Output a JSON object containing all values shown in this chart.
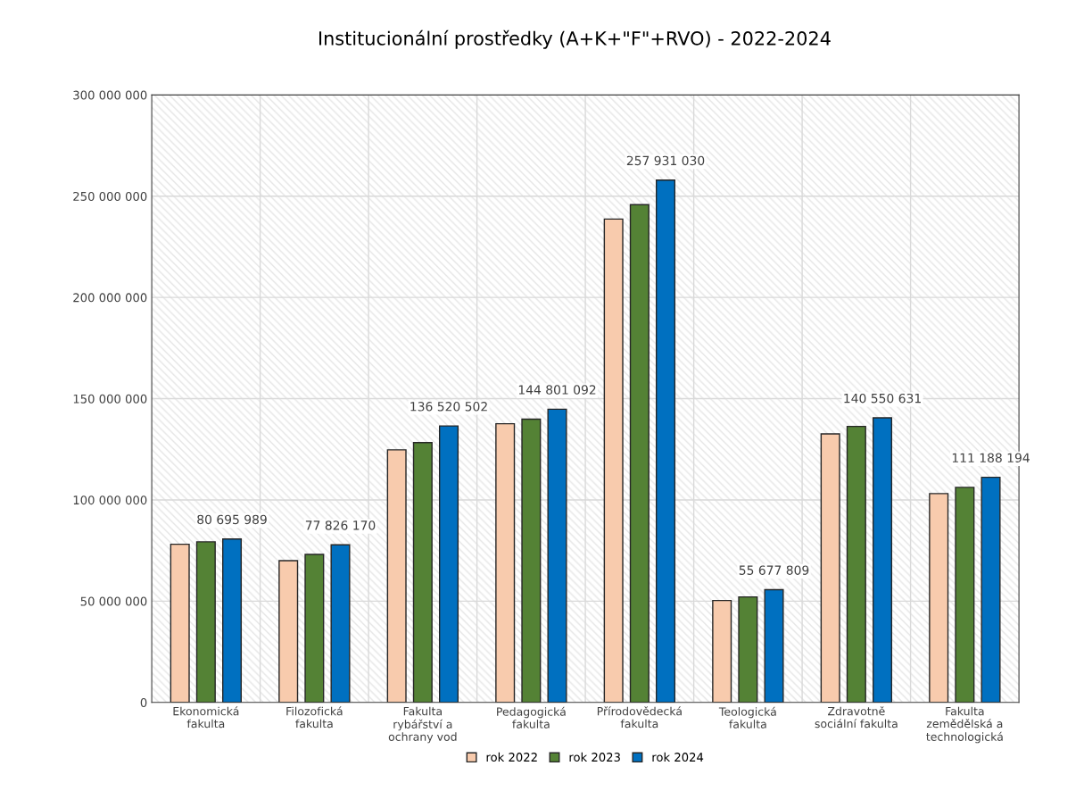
{
  "chart_data": {
    "type": "bar",
    "title": "Institucionální prostředky (A+K+\"F\"+RVO) - 2022-2024",
    "categories": [
      "Ekonomická fakulta",
      "Filozofická fakulta",
      "Fakulta rybářství a ochrany vod",
      "Pedagogická fakulta",
      "Přírodovědecká fakulta",
      "Teologická fakulta",
      "Zdravotně sociální fakulta",
      "Fakulta zemědělská a technologická"
    ],
    "series": [
      {
        "name": "rok 2022",
        "color": "#f8cbad",
        "values": [
          78100000,
          70000000,
          124700000,
          137600000,
          238700000,
          50300000,
          132600000,
          103100000
        ]
      },
      {
        "name": "rok 2023",
        "color": "#548235",
        "values": [
          79300000,
          73100000,
          128300000,
          139900000,
          245800000,
          52100000,
          136300000,
          106200000
        ]
      },
      {
        "name": "rok 2024",
        "color": "#0070c0",
        "values": [
          80695989,
          77826170,
          136520502,
          144801092,
          257931030,
          55677809,
          140550631,
          111188194
        ],
        "value_labels": [
          "80 695 989",
          "77 826 170",
          "136 520 502",
          "144 801 092",
          "257 931 030",
          "55 677 809",
          "140 550 631",
          "111 188 194"
        ]
      }
    ],
    "ylim": [
      0,
      300000000
    ],
    "yticks": [
      0,
      {
        "value": 50000000,
        "label": "50 000 000"
      },
      {
        "value": 100000000,
        "label": "100 000 000"
      },
      {
        "value": 150000000,
        "label": "150 000 000"
      },
      {
        "value": 200000000,
        "label": "200 000 000"
      },
      {
        "value": 250000000,
        "label": "250 000 000"
      },
      {
        "value": 300000000,
        "label": "300 000 000"
      }
    ],
    "grid": true,
    "legend": "bottom"
  }
}
